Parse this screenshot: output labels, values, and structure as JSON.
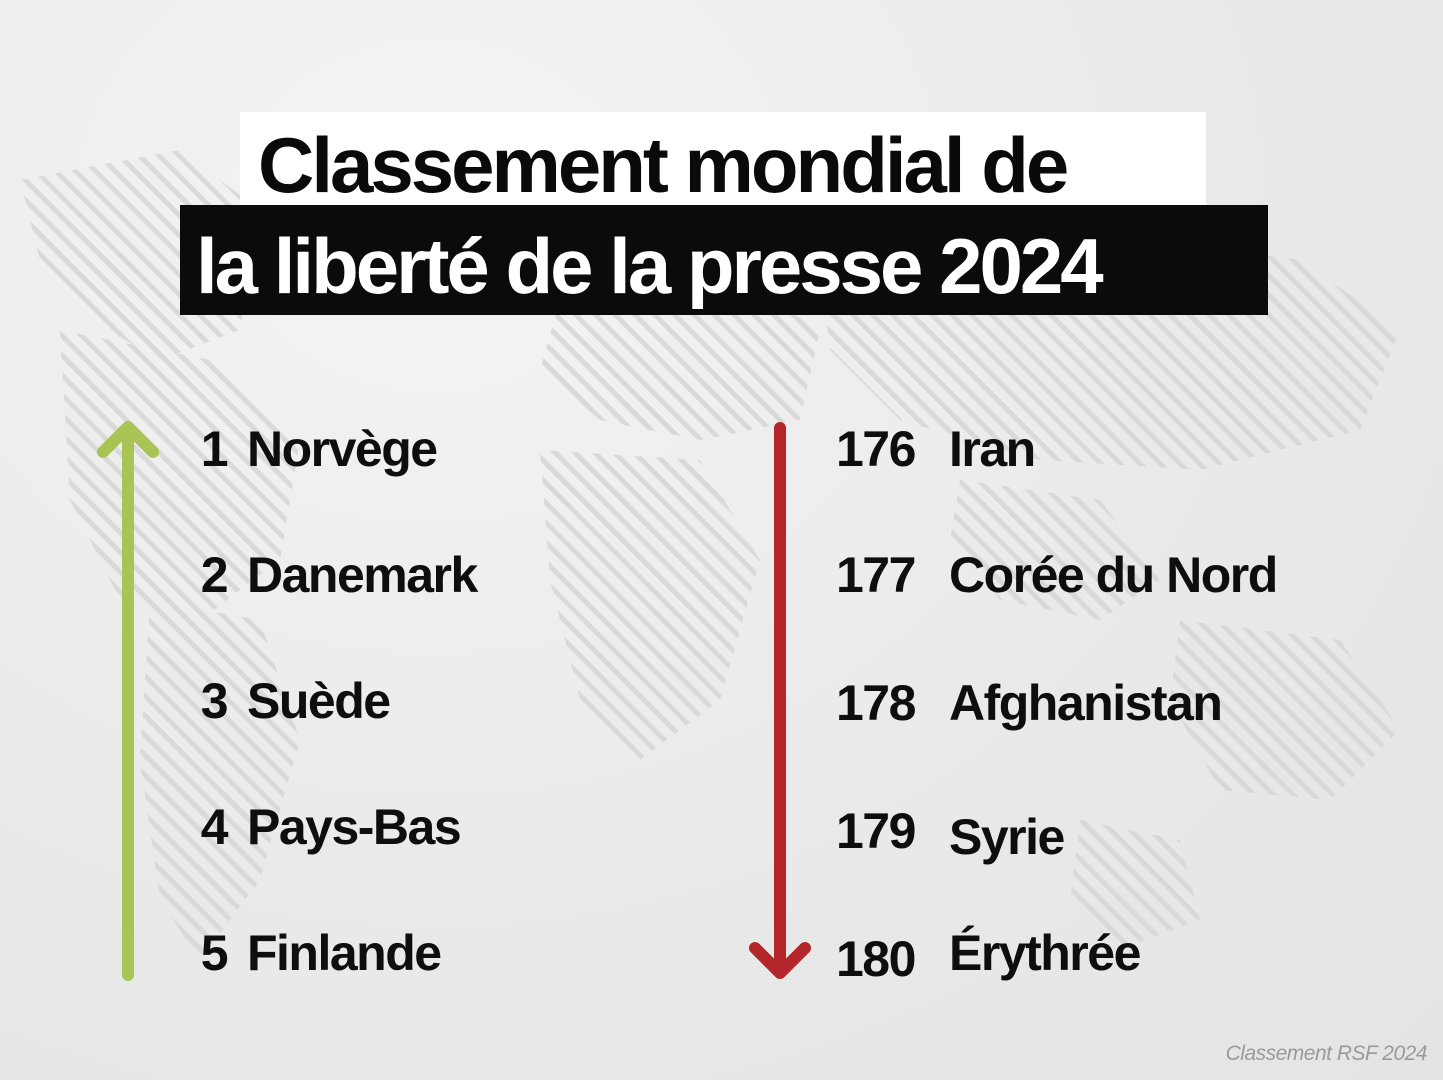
{
  "title": {
    "line1": "Classement mondial de",
    "line2": "la liberté de la presse 2024"
  },
  "top_ranking": [
    {
      "rank": "1",
      "country": "Norvège"
    },
    {
      "rank": "2",
      "country": "Danemark"
    },
    {
      "rank": "3",
      "country": "Suède"
    },
    {
      "rank": "4",
      "country": "Pays-Bas"
    },
    {
      "rank": "5",
      "country": "Finlande"
    }
  ],
  "bottom_ranking": [
    {
      "rank": "176",
      "country": "Iran"
    },
    {
      "rank": "177",
      "country": "Corée du Nord"
    },
    {
      "rank": "178",
      "country": "Afghanistan"
    },
    {
      "rank": "179",
      "country": "Syrie"
    },
    {
      "rank": "180",
      "country": "Érythrée"
    }
  ],
  "source": "Classement RSF 2024",
  "colors": {
    "up_arrow": "#a8c455",
    "down_arrow": "#b3272a",
    "title_dark_bg": "#0b0b0b",
    "title_light_bg": "#ffffff"
  },
  "icons": {
    "up_arrow": "arrow-up-icon",
    "down_arrow": "arrow-down-icon"
  }
}
